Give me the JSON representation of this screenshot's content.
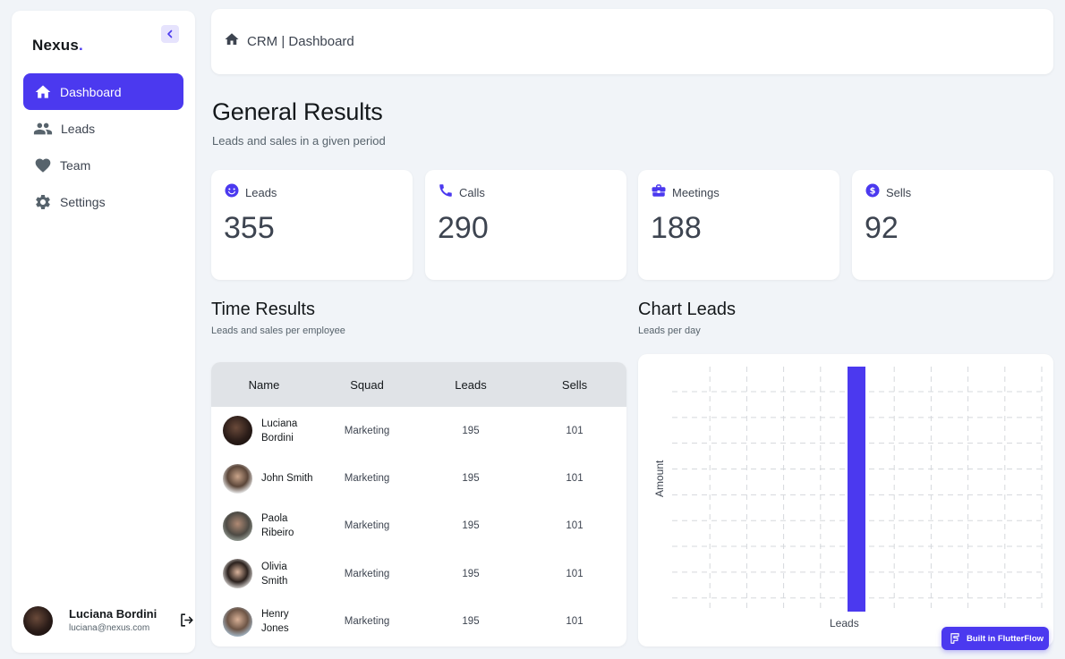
{
  "brand": {
    "name": "Nexus",
    "dot": "."
  },
  "sidebar": {
    "items": [
      {
        "label": "Dashboard",
        "icon": "home-icon",
        "active": true
      },
      {
        "label": "Leads",
        "icon": "people-icon",
        "active": false
      },
      {
        "label": "Team",
        "icon": "heart-icon",
        "active": false
      },
      {
        "label": "Settings",
        "icon": "gear-icon",
        "active": false
      }
    ]
  },
  "user": {
    "name": "Luciana Bordini",
    "email": "luciana@nexus.com"
  },
  "header": {
    "breadcrumb": "CRM | Dashboard"
  },
  "page": {
    "title": "General Results",
    "subtitle": "Leads and sales in a given period"
  },
  "stats": [
    {
      "label": "Leads",
      "value": "355",
      "icon": "smiley-icon"
    },
    {
      "label": "Calls",
      "value": "290",
      "icon": "phone-icon"
    },
    {
      "label": "Meetings",
      "value": "188",
      "icon": "briefcase-icon"
    },
    {
      "label": "Sells",
      "value": "92",
      "icon": "dollar-icon"
    }
  ],
  "time_results": {
    "title": "Time Results",
    "subtitle": "Leads and sales per employee",
    "columns": [
      "Name",
      "Squad",
      "Leads",
      "Sells"
    ],
    "rows": [
      {
        "name": "Luciana Bordini",
        "squad": "Marketing",
        "leads": "195",
        "sells": "101"
      },
      {
        "name": "John Smith",
        "squad": "Marketing",
        "leads": "195",
        "sells": "101"
      },
      {
        "name": "Paola Ribeiro",
        "squad": "Marketing",
        "leads": "195",
        "sells": "101"
      },
      {
        "name": "Olivia Smith",
        "squad": "Marketing",
        "leads": "195",
        "sells": "101"
      },
      {
        "name": "Henry Jones",
        "squad": "Marketing",
        "leads": "195",
        "sells": "101"
      }
    ]
  },
  "chart_leads": {
    "title": "Chart Leads",
    "subtitle": "Leads per day"
  },
  "chart_data": {
    "type": "bar",
    "categories": [
      "Leads"
    ],
    "values": [
      1
    ],
    "xlabel": "Leads",
    "ylabel": "Amount",
    "grid": true,
    "bar_color": "#4b39ef"
  },
  "badge": {
    "label": "Built in FlutterFlow"
  },
  "colors": {
    "primary": "#4b39ef",
    "background": "#f1f4f8",
    "header_row": "#e0e3e7"
  }
}
